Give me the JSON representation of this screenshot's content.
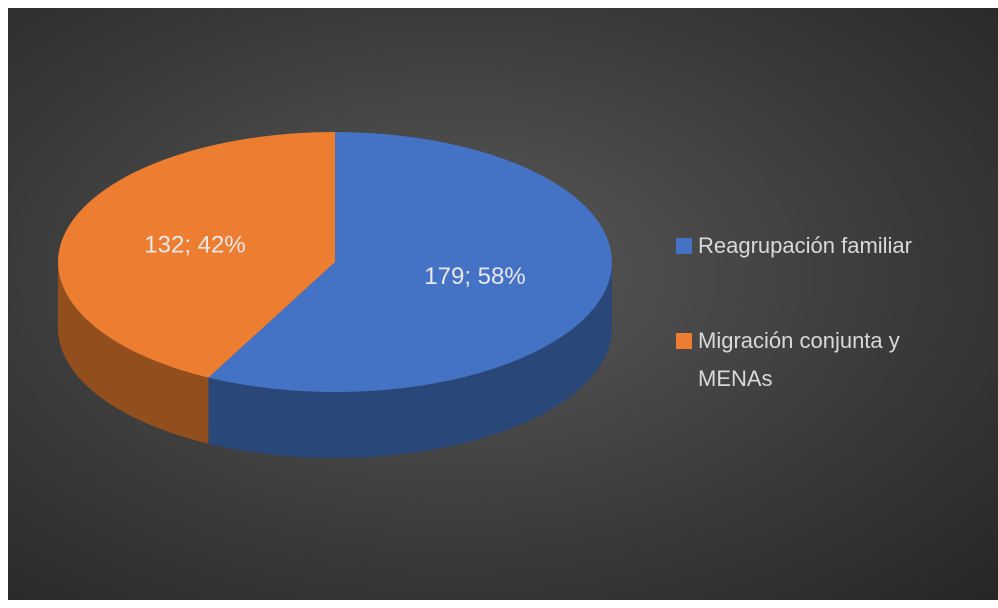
{
  "chart_data": {
    "type": "pie",
    "categories": [
      "Reagrupación familiar",
      "Migración conjunta y MENAs"
    ],
    "values": [
      179,
      132
    ],
    "value_labels": [
      "179; 58%",
      "132; 42%"
    ],
    "colors": [
      "#4472c4",
      "#ed7d31"
    ],
    "legend": "right"
  }
}
